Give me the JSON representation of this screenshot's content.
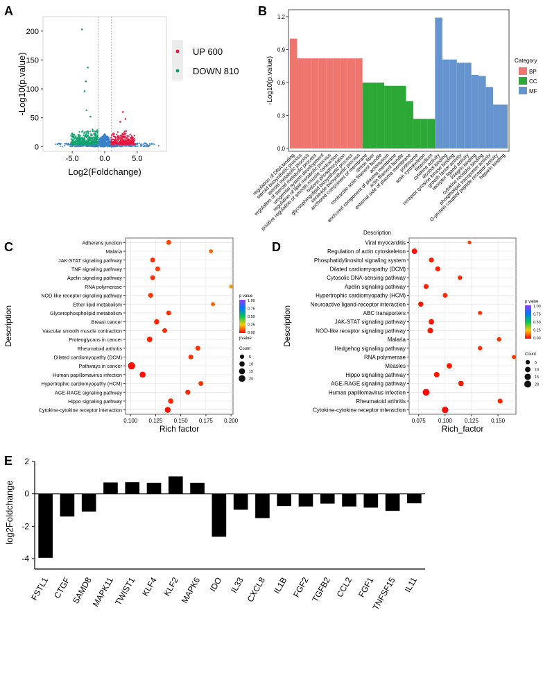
{
  "panels": {
    "A": {
      "letter": "A"
    },
    "B": {
      "letter": "B"
    },
    "C": {
      "letter": "C"
    },
    "D": {
      "letter": "D"
    },
    "E": {
      "letter": "E"
    }
  },
  "chart_data": [
    {
      "id": "A",
      "type": "scatter",
      "title": "",
      "xlabel": "Log2(Foldchange)",
      "ylabel": "-Log10(p.value)",
      "xlim": [
        -9.5,
        9.5
      ],
      "ylim": [
        -8,
        225
      ],
      "xticks": [
        -5.0,
        0.0,
        5.0
      ],
      "xtick_labels": [
        "-5.0",
        "0.0",
        "5.0"
      ],
      "yticks": [
        0,
        50,
        100,
        150,
        200
      ],
      "threshold_x": [
        -1,
        1
      ],
      "legend": [
        {
          "label": "UP 600",
          "color": "#e8173f"
        },
        {
          "label": "DOWN 810",
          "color": "#13a26d"
        }
      ],
      "colors": {
        "up": "#e8173f",
        "down": "#13a26d",
        "ns": "#3b82c8"
      },
      "highlight_points": [
        [
          -3.5,
          203
        ],
        [
          -2.6,
          137
        ],
        [
          -2.9,
          113
        ],
        [
          -3.1,
          96
        ],
        [
          -2.8,
          63
        ],
        [
          2.8,
          60
        ],
        [
          3.2,
          48
        ],
        [
          -2.2,
          52
        ],
        [
          2.4,
          43
        ]
      ],
      "notes": "Remaining ~1400 points form the volcano cloud below y≈40"
    },
    {
      "id": "B",
      "type": "bar",
      "title": "",
      "xlabel": "Description",
      "ylabel": "-Log10(p.value)",
      "ylim": [
        0,
        1.25
      ],
      "yticks": [
        0.0,
        0.3,
        0.6,
        0.9,
        1.2
      ],
      "ytick_labels": [
        "0.0",
        "0.3",
        "0.6",
        "0.9",
        "1.2"
      ],
      "legend_title": "Category",
      "legend": [
        {
          "label": "BP",
          "color": "#ef766f"
        },
        {
          "label": "CC",
          "color": "#2ca836"
        },
        {
          "label": "MF",
          "color": "#6594cf"
        }
      ],
      "categories": [
        "regulation of DNA binding",
        "steroid biosynthetic process",
        "steroid metabolic process",
        "regulation of steroid metabolic process",
        "urogenital system development",
        "regulation of lipid metabolic process",
        "positive regulation of smooth muscle contraction",
        "histone phosphorylation",
        "glycosphingolipid biosynthetic process",
        "ceramide biosynthetic process",
        "anchored component of membrane",
        "stress fiber",
        "contractile actin filament bundle",
        "actomyosin",
        "anchored component of plasma membrane",
        "actin filament bundle",
        "external side of plasma membrane",
        "podosome",
        "actin cytoskeleton",
        "filopodium",
        "cytokine activity",
        "alcohol binding",
        "receptor tyrosine kinase binding",
        "growth factor activity",
        "receptor ligand activity",
        "integrin binding",
        "cytokine receptor binding",
        "phospholipid transporter activity",
        "G-protein coupled peptide receptor activity",
        "heparin binding"
      ],
      "values": [
        1.0,
        0.82,
        0.82,
        0.82,
        0.82,
        0.82,
        0.82,
        0.82,
        0.82,
        0.82,
        0.6,
        0.6,
        0.6,
        0.57,
        0.57,
        0.57,
        0.43,
        0.27,
        0.27,
        0.27,
        1.19,
        0.81,
        0.81,
        0.78,
        0.78,
        0.67,
        0.66,
        0.56,
        0.4,
        0.4
      ],
      "groups": [
        "BP",
        "BP",
        "BP",
        "BP",
        "BP",
        "BP",
        "BP",
        "BP",
        "BP",
        "BP",
        "CC",
        "CC",
        "CC",
        "CC",
        "CC",
        "CC",
        "CC",
        "CC",
        "CC",
        "CC",
        "MF",
        "MF",
        "MF",
        "MF",
        "MF",
        "MF",
        "MF",
        "MF",
        "MF",
        "MF"
      ]
    },
    {
      "id": "C",
      "type": "scatter",
      "title": "",
      "xlabel": "Rich factor",
      "ylabel": "Description",
      "xlim": [
        0.095,
        0.202
      ],
      "xticks": [
        0.1,
        0.125,
        0.15,
        0.175,
        0.2
      ],
      "xtick_labels": [
        "0.100",
        "0.125",
        "0.150",
        "0.175",
        "0.200"
      ],
      "categories": [
        "Adherens junction",
        "Malaria",
        "JAK-STAT signaling pathway",
        "TNF signaling pathway",
        "Apelin signaling pathway",
        "RNA polymerase",
        "NOD-like receptor signaling pathway",
        "Ether lipid metabolism",
        "Glycerophospholipid metabolism",
        "Breast cancer",
        "Vascular smooth muscle contraction",
        "Proteoglycans in cancer",
        "Rheumatoid arthritis",
        "Dilated cardiomyopathy (DCM)",
        "Pathways in cancer",
        "Human papillomavirus infection",
        "Hypertrophic cardiomyopathy (HCM)",
        "AGE-RAGE signaling pathway",
        "Hippo signaling pathway",
        "Cytokine-cytokine receptor interaction"
      ],
      "x": [
        0.138,
        0.18,
        0.122,
        0.127,
        0.122,
        0.2,
        0.12,
        0.182,
        0.138,
        0.126,
        0.134,
        0.119,
        0.167,
        0.16,
        0.101,
        0.112,
        0.17,
        0.157,
        0.14,
        0.137
      ],
      "counts": [
        6,
        3,
        6,
        6,
        6,
        2,
        6,
        3,
        6,
        8,
        6,
        9,
        6,
        6,
        20,
        12,
        6,
        7,
        8,
        11
      ],
      "pvalues": [
        0.08,
        0.12,
        0.06,
        0.07,
        0.06,
        0.18,
        0.06,
        0.12,
        0.06,
        0.05,
        0.06,
        0.04,
        0.06,
        0.06,
        0.01,
        0.02,
        0.06,
        0.05,
        0.05,
        0.02
      ],
      "legend_title": "p value",
      "legend_title2": "pvalue",
      "gradient_ticks": [
        "1.00",
        "0.75",
        "0.50",
        "0.25",
        "0.00"
      ],
      "count_title": "Count",
      "count_labels": [
        "5",
        "10",
        "15",
        "20"
      ]
    },
    {
      "id": "D",
      "type": "scatter",
      "title": "",
      "xlabel": "Rich_factor",
      "ylabel": "Description",
      "xlim": [
        0.066,
        0.167
      ],
      "xticks": [
        0.075,
        0.1,
        0.125,
        0.15
      ],
      "xtick_labels": [
        "0.075",
        "0.100",
        "0.125",
        "0.150"
      ],
      "categories": [
        "Viral myocarditis",
        "Regulation of actin cytoskeleton",
        "Phosphatidylinositol signaling system",
        "Dilated cardiomyopathy (DCM)",
        "Cytosolic DNA-sensing pathway",
        "Apelin signaling pathway",
        "Hypertrophic cardiomyopathy (HCM)",
        "Neuroactive ligand-receptor interaction",
        "ABC transporters",
        "JAK-STAT signaling pathway",
        "NOD-like receptor signaling pathway",
        "Malaria",
        "Hedgehog signaling pathway",
        "RNA polymerase",
        "Measles",
        "Hippo signaling pathway",
        "AGE-RAGE signaling pathway",
        "Human papillomavirus infection",
        "Rheumatoid arthritis",
        "Cytokine-cytokine receptor interaction"
      ],
      "x": [
        0.123,
        0.071,
        0.087,
        0.093,
        0.114,
        0.082,
        0.1,
        0.077,
        0.133,
        0.087,
        0.086,
        0.151,
        0.133,
        0.165,
        0.104,
        0.092,
        0.115,
        0.082,
        0.152,
        0.1
      ],
      "counts": [
        2,
        8,
        6,
        6,
        4,
        6,
        5,
        7,
        3,
        8,
        9,
        4,
        4,
        3,
        8,
        8,
        8,
        15,
        6,
        13
      ],
      "pvalues": [
        0.08,
        0.02,
        0.04,
        0.04,
        0.05,
        0.04,
        0.05,
        0.03,
        0.06,
        0.03,
        0.03,
        0.06,
        0.06,
        0.07,
        0.03,
        0.03,
        0.03,
        0.01,
        0.05,
        0.01
      ],
      "legend_title": "p value",
      "gradient_ticks": [
        "1.00",
        "0.75",
        "0.50",
        "0.25",
        "0.00"
      ],
      "count_title": "Count",
      "count_labels": [
        "5",
        "10",
        "15",
        "20"
      ]
    },
    {
      "id": "E",
      "type": "bar",
      "title": "",
      "xlabel": "",
      "ylabel": "log2Foldchange",
      "ylim": [
        -4.3,
        2
      ],
      "yticks": [
        2,
        0,
        -2,
        -4
      ],
      "ytick_labels": [
        "2",
        "0",
        "-2",
        "-4"
      ],
      "categories": [
        "FSTL1",
        "CTGF",
        "SAMD8",
        "MAPK11",
        "TWIST1",
        "KLF4",
        "KLF2",
        "MAPK6",
        "IDO",
        "IL33",
        "CXCL8",
        "IL1B",
        "FGF2",
        "TGFB2",
        "CCL2",
        "FGF1",
        "TNFSF15",
        "IL11"
      ],
      "values": [
        -3.95,
        -1.4,
        -1.1,
        0.7,
        0.72,
        0.68,
        1.08,
        0.68,
        -2.65,
        -0.98,
        -1.5,
        -0.75,
        -0.78,
        -0.6,
        -0.78,
        -0.85,
        -1.05,
        -0.58
      ],
      "color": "#000000"
    }
  ]
}
